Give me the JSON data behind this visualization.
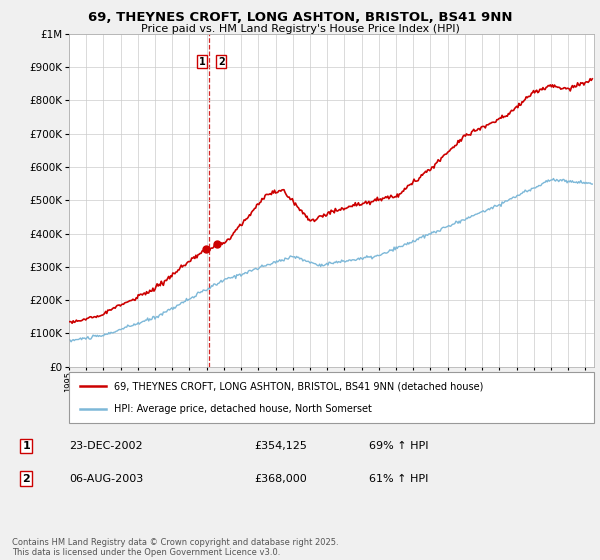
{
  "title": "69, THEYNES CROFT, LONG ASHTON, BRISTOL, BS41 9NN",
  "subtitle": "Price paid vs. HM Land Registry's House Price Index (HPI)",
  "ytick_values": [
    0,
    100000,
    200000,
    300000,
    400000,
    500000,
    600000,
    700000,
    800000,
    900000,
    1000000
  ],
  "ylim": [
    0,
    1000000
  ],
  "xlim_start": 1995,
  "xlim_end": 2025.5,
  "sale1_date": 2002.98,
  "sale1_price": 354125,
  "sale2_date": 2003.59,
  "sale2_price": 368000,
  "vline_x": 2003.15,
  "legend_line1": "69, THEYNES CROFT, LONG ASHTON, BRISTOL, BS41 9NN (detached house)",
  "legend_line2": "HPI: Average price, detached house, North Somerset",
  "table_row1": [
    "1",
    "23-DEC-2002",
    "£354,125",
    "69% ↑ HPI"
  ],
  "table_row2": [
    "2",
    "06-AUG-2003",
    "£368,000",
    "61% ↑ HPI"
  ],
  "footer": "Contains HM Land Registry data © Crown copyright and database right 2025.\nThis data is licensed under the Open Government Licence v3.0.",
  "price_color": "#cc0000",
  "hpi_color": "#7db8d8",
  "bg_color": "#f0f0f0"
}
